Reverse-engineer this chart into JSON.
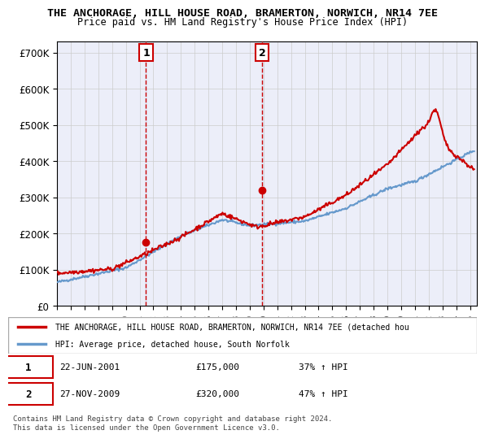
{
  "title1": "THE ANCHORAGE, HILL HOUSE ROAD, BRAMERTON, NORWICH, NR14 7EE",
  "title2": "Price paid vs. HM Land Registry's House Price Index (HPI)",
  "ylabel_ticks": [
    "£0",
    "£100K",
    "£200K",
    "£300K",
    "£400K",
    "£500K",
    "£600K",
    "£700K"
  ],
  "ytick_vals": [
    0,
    100000,
    200000,
    300000,
    400000,
    500000,
    600000,
    700000
  ],
  "ylim": [
    0,
    730000
  ],
  "xlim_start": 1995.0,
  "xlim_end": 2025.5,
  "sale1_x": 2001.47,
  "sale1_y": 175000,
  "sale2_x": 2009.9,
  "sale2_y": 320000,
  "line_color_red": "#cc0000",
  "line_color_blue": "#6699cc",
  "dashed_color": "#cc0000",
  "legend_label_red": "THE ANCHORAGE, HILL HOUSE ROAD, BRAMERTON, NORWICH, NR14 7EE (detached hou",
  "legend_label_blue": "HPI: Average price, detached house, South Norfolk",
  "footer": "Contains HM Land Registry data © Crown copyright and database right 2024.\nThis data is licensed under the Open Government Licence v3.0.",
  "xtick_years": [
    1995,
    1996,
    1997,
    1998,
    1999,
    2000,
    2001,
    2002,
    2003,
    2004,
    2005,
    2006,
    2007,
    2008,
    2009,
    2010,
    2011,
    2012,
    2013,
    2014,
    2015,
    2016,
    2017,
    2018,
    2019,
    2020,
    2021,
    2022,
    2023,
    2024,
    2025
  ]
}
